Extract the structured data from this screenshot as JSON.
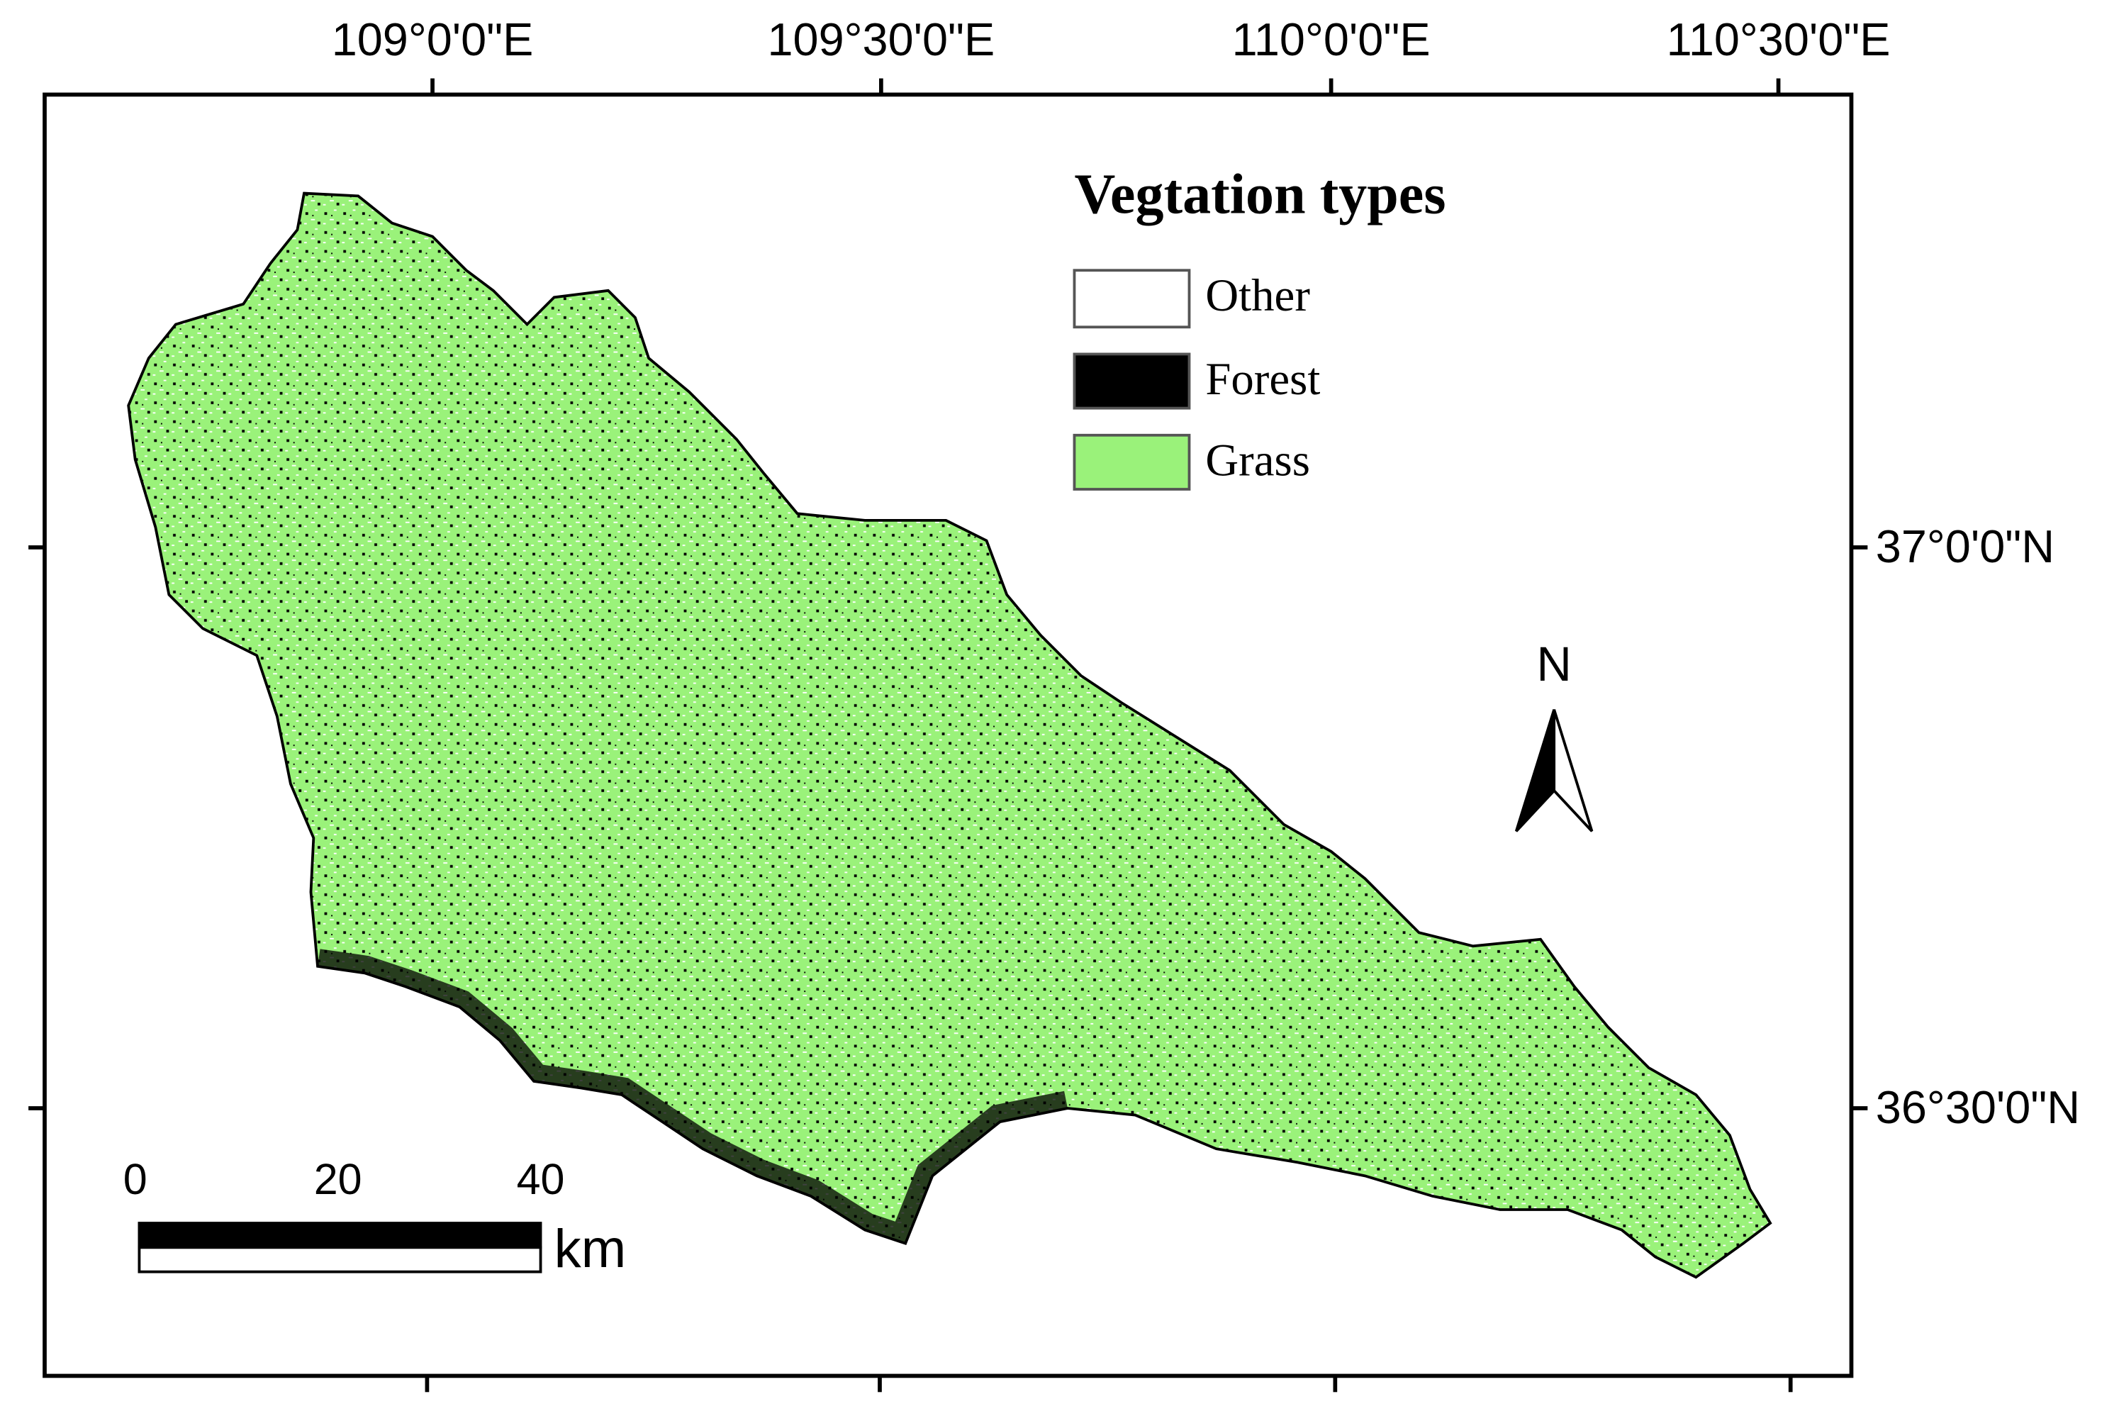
{
  "map": {
    "longitude_labels": [
      "109°0'0\"E",
      "109°30'0\"E",
      "110°0'0\"E",
      "110°30'0\"E"
    ],
    "latitude_labels": [
      "37°0'0\"N",
      "36°30'0\"N"
    ],
    "legend": {
      "title": "Vegtation types",
      "items": [
        "Other",
        "Forest",
        "Grass"
      ]
    },
    "north_arrow": "N",
    "scale_bar": {
      "labels": [
        "0",
        "20",
        "40"
      ],
      "unit": "km"
    }
  }
}
